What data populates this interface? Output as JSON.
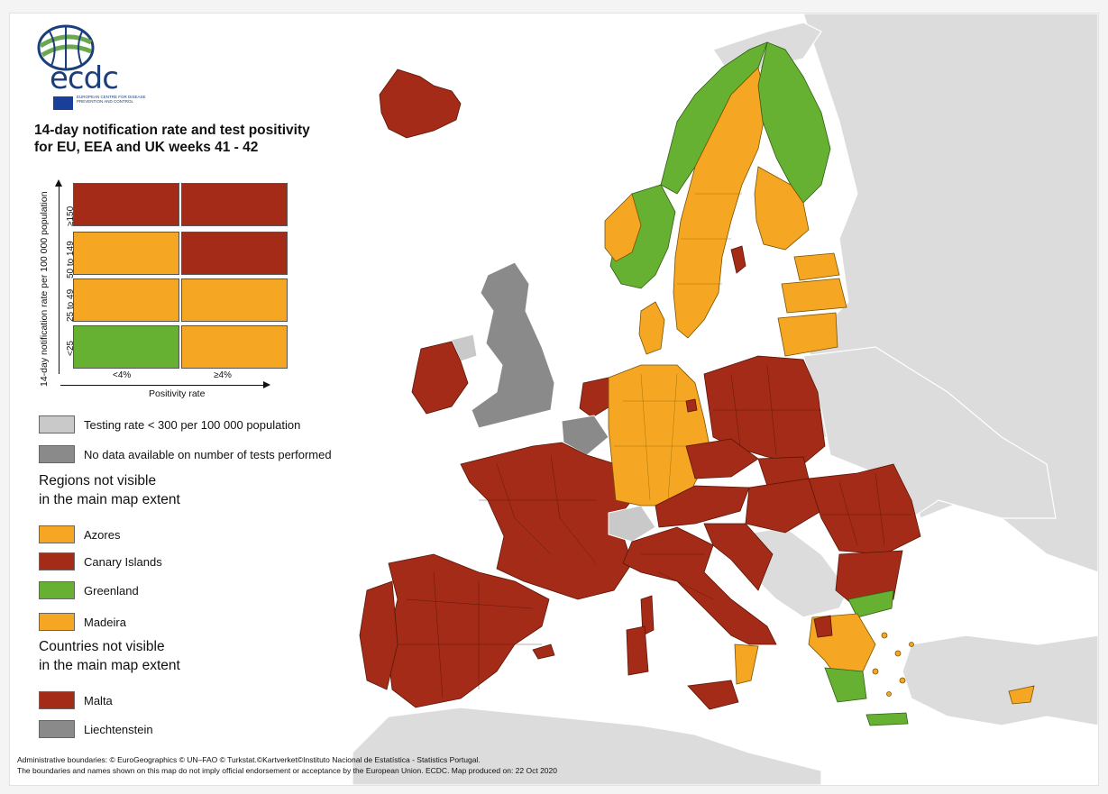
{
  "title_line1": "14-day notification rate and test positivity",
  "title_line2": "for EU, EEA and UK weeks 41 - 42",
  "logo": {
    "text": "ecdc",
    "subtext": "EUROPEAN CENTRE FOR DISEASE PREVENTION AND CONTROL"
  },
  "matrix": {
    "y_axis_title": "14-day notification rate per 100 000 population",
    "x_axis_title": "Positivity rate",
    "x_labels": [
      "<4%",
      "≥4%"
    ],
    "y_labels": [
      "≥150",
      "50 to 149",
      "25 to 49",
      "<25"
    ],
    "cells": [
      [
        "#a32b17",
        "#a32b17"
      ],
      [
        "#f5a623",
        "#a32b17"
      ],
      [
        "#f5a623",
        "#f5a623"
      ],
      [
        "#66b032",
        "#f5a623"
      ]
    ]
  },
  "legend": {
    "testing_rate": {
      "label": "Testing rate < 300 per 100 000 population",
      "color": "#c9c9c9"
    },
    "no_data": {
      "label": "No data available on number of tests performed",
      "color": "#8a8a8a"
    },
    "regions_heading_1": "Regions not visible",
    "regions_heading_2": "in the main map extent",
    "regions": [
      {
        "label": "Azores",
        "color": "#f5a623"
      },
      {
        "label": "Canary Islands",
        "color": "#a32b17"
      },
      {
        "label": "Greenland",
        "color": "#66b032"
      },
      {
        "label": "Madeira",
        "color": "#f5a623"
      }
    ],
    "countries_heading_1": "Countries not visible",
    "countries_heading_2": "in the main map extent",
    "countries": [
      {
        "label": "Malta",
        "color": "#a32b17"
      },
      {
        "label": "Liechtenstein",
        "color": "#8a8a8a"
      }
    ]
  },
  "footer_line1": "Administrative boundaries: © EuroGeographics © UN–FAO © Turkstat.©Kartverket©Instituto Nacional de Estatística - Statistics Portugal.",
  "footer_line2": "The boundaries and names shown on this map do not imply official endorsement or acceptance by the European Union. ECDC. Map produced on: 22 Oct 2020"
}
